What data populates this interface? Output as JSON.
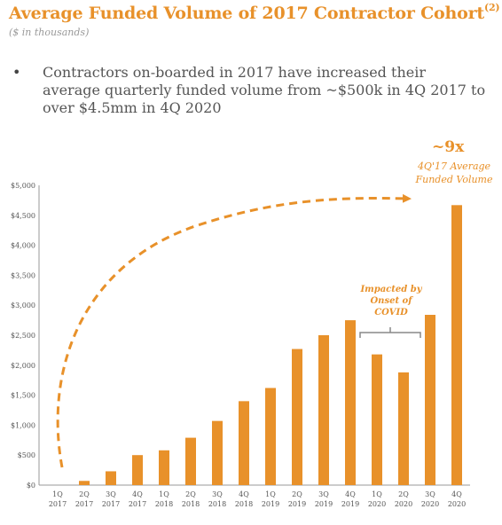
{
  "header": {
    "title": "Average Funded Volume of 2017 Contractor Cohort",
    "title_sup": "(2)",
    "subtitle": "($ in thousands)"
  },
  "bullet": {
    "marker": "•",
    "text": "Contractors on-boarded in 2017 have increased their average quarterly funded volume from ~$500k in 4Q 2017 to over $4.5mm in 4Q 2020"
  },
  "callout": {
    "multiple": "~9x",
    "caption": "4Q'17 Average Funded Volume"
  },
  "colors": {
    "accent": "#E8912A",
    "text": "#555555"
  },
  "chart_data": {
    "type": "bar",
    "categories": [
      [
        "1Q",
        "2017"
      ],
      [
        "2Q",
        "2017"
      ],
      [
        "3Q",
        "2017"
      ],
      [
        "4Q",
        "2017"
      ],
      [
        "1Q",
        "2018"
      ],
      [
        "2Q",
        "2018"
      ],
      [
        "3Q",
        "2018"
      ],
      [
        "4Q",
        "2018"
      ],
      [
        "1Q",
        "2019"
      ],
      [
        "2Q",
        "2019"
      ],
      [
        "3Q",
        "2019"
      ],
      [
        "4Q",
        "2019"
      ],
      [
        "1Q",
        "2020"
      ],
      [
        "2Q",
        "2020"
      ],
      [
        "3Q",
        "2020"
      ],
      [
        "4Q",
        "2020"
      ]
    ],
    "values": [
      0,
      70,
      230,
      500,
      580,
      790,
      1070,
      1400,
      1620,
      2270,
      2500,
      2750,
      2180,
      1880,
      2840,
      4670
    ],
    "ylim": [
      0,
      5000
    ],
    "yticks": [
      0,
      500,
      1000,
      1500,
      2000,
      2500,
      3000,
      3500,
      4000,
      4500,
      5000
    ],
    "ytick_labels": [
      "$0",
      "$500",
      "$1,000",
      "$1,500",
      "$2,000",
      "$2,500",
      "$3,000",
      "$3,500",
      "$4,000",
      "$4,500",
      "$5,000"
    ],
    "annotation": {
      "lines": [
        "Impacted by",
        "Onset of",
        "COVID"
      ],
      "applies_to": [
        "1Q 2020",
        "2Q 2020"
      ]
    },
    "grid": false,
    "bar_color": "#E8912A"
  }
}
